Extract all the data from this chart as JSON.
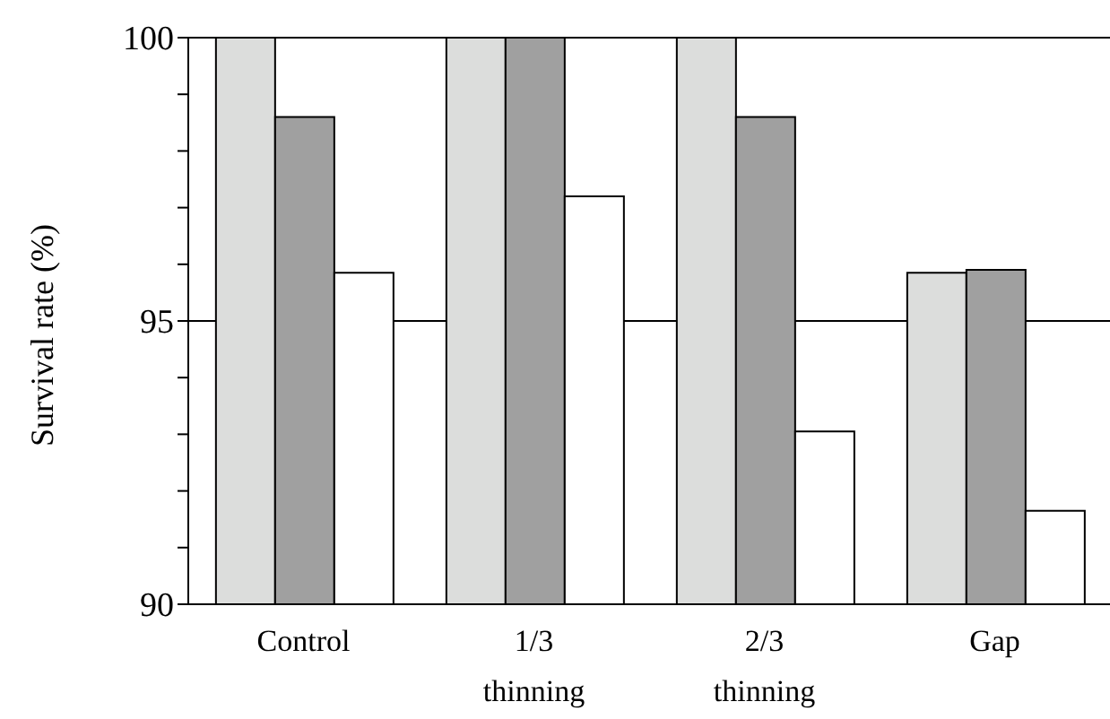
{
  "chart_data": {
    "type": "bar",
    "ylabel": "Survival rate (%)",
    "categories": [
      "Control",
      "1/3 thinning",
      "2/3 thinning",
      "Gap"
    ],
    "series": [
      {
        "color": "#dcdddc",
        "values": [
          100,
          100,
          100,
          95.85
        ]
      },
      {
        "color": "#a0a0a0",
        "values": [
          98.6,
          100,
          98.6,
          95.9
        ]
      },
      {
        "color": "#ffffff",
        "values": [
          95.85,
          97.2,
          93.05,
          91.65
        ]
      }
    ],
    "ylim": [
      90,
      100
    ],
    "yticks": [
      90,
      {
        "value": 91,
        "label": null
      },
      {
        "value": 92,
        "label": null
      },
      {
        "value": 93,
        "label": null
      },
      {
        "value": 94,
        "label": null
      },
      95,
      {
        "value": 96,
        "label": null
      },
      {
        "value": 97,
        "label": null
      },
      {
        "value": 98,
        "label": null
      },
      {
        "value": 99,
        "label": null
      },
      100
    ],
    "grid": "y",
    "legend": false
  }
}
